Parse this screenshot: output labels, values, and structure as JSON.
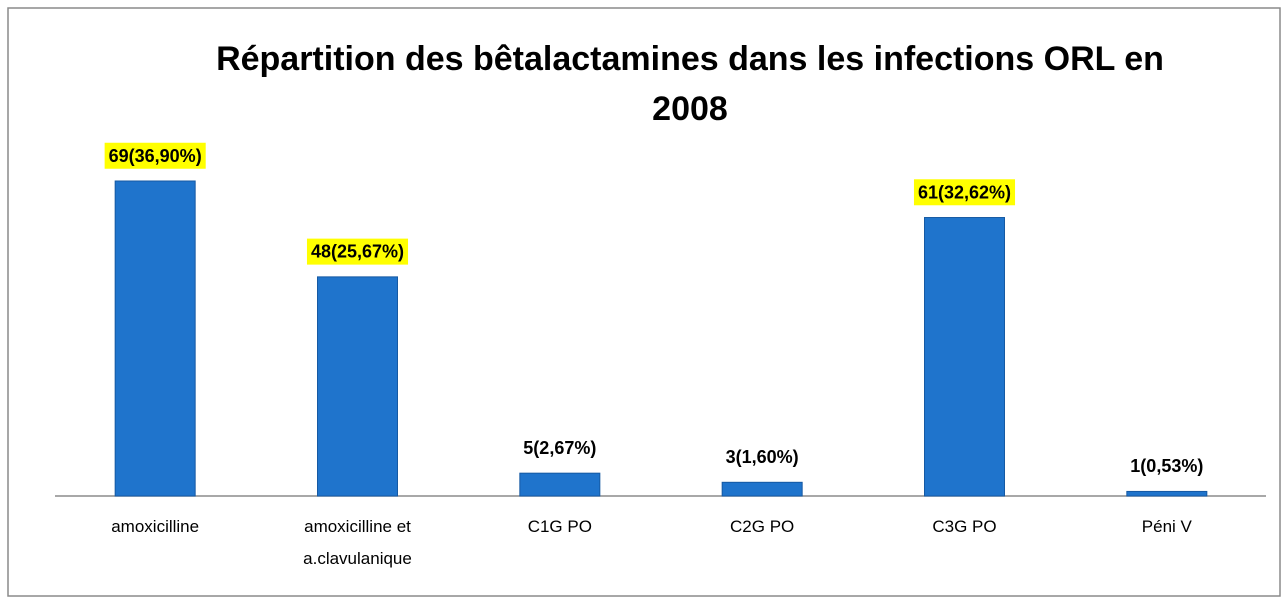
{
  "chart_data": {
    "type": "bar",
    "title": "Répartition des bêtalactamines dans les infections ORL en 2008",
    "categories": [
      "amoxicilline",
      "amoxicilline et a.clavulanique",
      "C1G PO",
      "C2G PO",
      "C3G PO",
      "Péni V"
    ],
    "values": [
      69,
      48,
      5,
      3,
      61,
      1
    ],
    "value_labels": [
      "69(36,90%)",
      "48(25,67%)",
      "5(2,67%)",
      "3(1,60%)",
      "61(32,62%)",
      "1(0,53%)"
    ],
    "highlight": [
      true,
      true,
      false,
      false,
      true,
      false
    ],
    "color": "#1f74cc",
    "highlight_color": "#ffff00"
  }
}
